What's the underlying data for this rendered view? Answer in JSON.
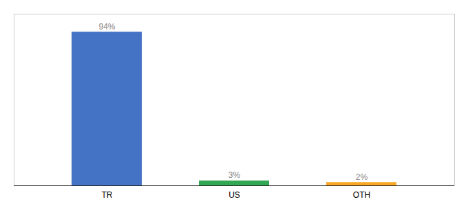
{
  "chart_data": {
    "type": "bar",
    "categories": [
      "TR",
      "US",
      "OTH"
    ],
    "values": [
      94,
      3,
      2
    ],
    "colors": [
      "#4472C4",
      "#33A853",
      "#F9A825"
    ],
    "value_labels": [
      "94%",
      "3%",
      "2%"
    ],
    "data_labels": true,
    "ylim": [
      0,
      105
    ],
    "tick_labels": "x"
  }
}
